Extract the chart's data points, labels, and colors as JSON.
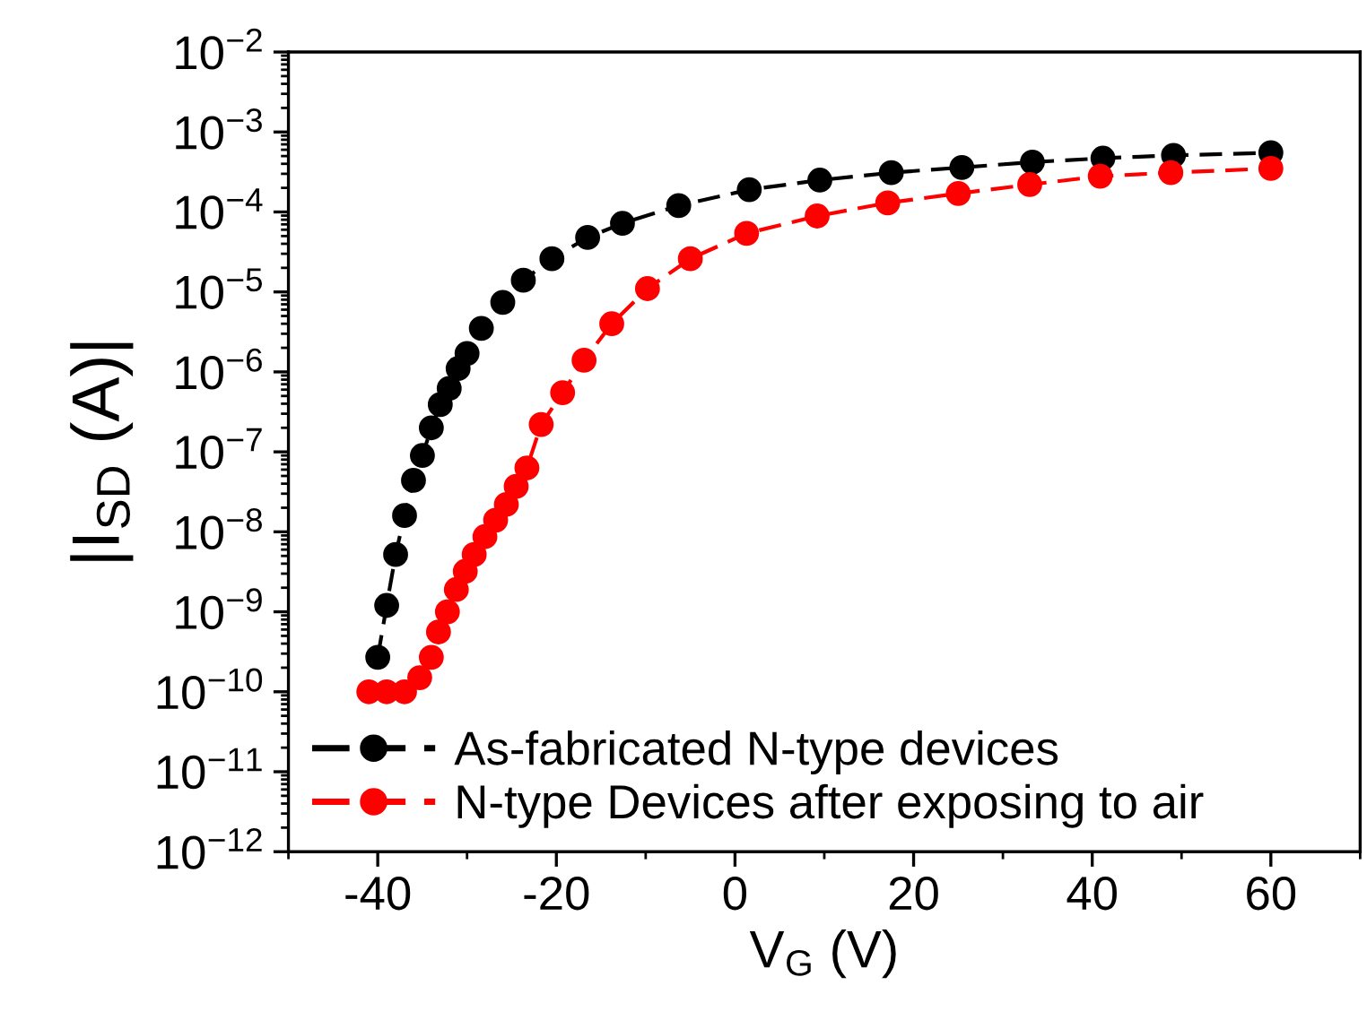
{
  "chart_data": {
    "type": "line",
    "xlabel": "V$_{G}$ (V)",
    "ylabel": "|I$_{SD}$ (A)|",
    "log": "y",
    "xlim": [
      -50,
      70
    ],
    "xticks": [
      -40,
      -20,
      0,
      20,
      40,
      60
    ],
    "ylim": [
      1e-12,
      0.01
    ],
    "yticks": [
      {
        "value": 1e-12,
        "label": "10$^{−12}$"
      },
      {
        "value": 1e-11,
        "label": "10$^{−11}$"
      },
      {
        "value": 1e-10,
        "label": "10$^{−10}$"
      },
      {
        "value": 1e-09,
        "label": "10$^{−9}$"
      },
      {
        "value": 1e-08,
        "label": "10$^{−8}$"
      },
      {
        "value": 1e-07,
        "label": "10$^{−7}$"
      },
      {
        "value": 1e-06,
        "label": "10$^{−6}$"
      },
      {
        "value": 1e-05,
        "label": "10$^{−5}$"
      },
      {
        "value": 0.0001,
        "label": "10$^{−4}$"
      },
      {
        "value": 0.001,
        "label": "10$^{−3}$"
      },
      {
        "value": 0.01,
        "label": "10$^{−2}$"
      }
    ],
    "grid": false,
    "legend": "bottom left",
    "marker": "circle",
    "line_style": "dashed",
    "series": [
      {
        "name": "As-fabricated N-type devices",
        "color": "#000000",
        "x": [
          -40,
          -39,
          -38,
          -37,
          -36,
          -35,
          -34,
          -33,
          -32,
          -31,
          -30,
          -28.4,
          -26,
          -23.7,
          -20.5,
          -16.5,
          -12.6,
          -6.3,
          1.6,
          9.5,
          17.5,
          25.4,
          33.3,
          41.2,
          49.1,
          60
        ],
        "values": [
          2.7e-10,
          1.2e-09,
          5.2e-09,
          1.6e-08,
          4.4e-08,
          9e-08,
          2e-07,
          3.9e-07,
          6.2e-07,
          1.1e-06,
          1.7e-06,
          3.5e-06,
          7.4e-06,
          1.4e-05,
          2.6e-05,
          4.8e-05,
          7.2e-05,
          0.00012,
          0.00019,
          0.00025,
          0.00031,
          0.00036,
          0.00042,
          0.00047,
          0.00051,
          0.00055
        ]
      },
      {
        "name": "N-type Devices after exposing to air",
        "color": "#ff0000",
        "x": [
          -41,
          -39,
          -37,
          -35.3,
          -34,
          -33.2,
          -32.2,
          -31.2,
          -30.2,
          -29.2,
          -28,
          -26.8,
          -25.6,
          -24.5,
          -23.3,
          -21.7,
          -19.3,
          -16.9,
          -13.8,
          -9.8,
          -5,
          1.3,
          9.2,
          17.1,
          25,
          33,
          40.9,
          48.8,
          60
        ],
        "values": [
          1e-10,
          1e-10,
          1e-10,
          1.5e-10,
          2.7e-10,
          5.6e-10,
          1e-09,
          1.9e-09,
          3.2e-09,
          5.2e-09,
          8.7e-09,
          1.4e-08,
          2.2e-08,
          3.7e-08,
          6.3e-08,
          2.2e-07,
          5.5e-07,
          1.4e-06,
          4e-06,
          1.1e-05,
          2.6e-05,
          5.4e-05,
          8.9e-05,
          0.00013,
          0.00017,
          0.00022,
          0.00028,
          0.00031,
          0.00035
        ]
      }
    ]
  }
}
